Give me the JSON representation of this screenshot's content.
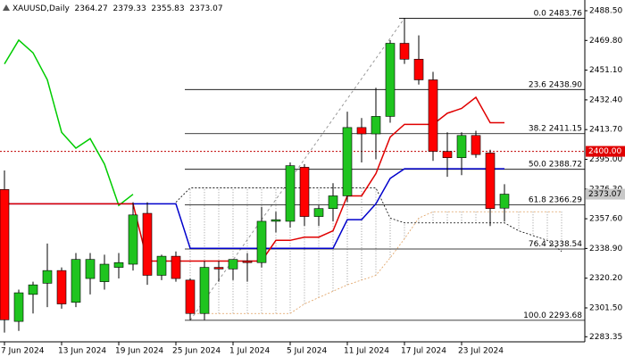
{
  "chart_data": {
    "type": "candlestick",
    "symbol": "XAUUSD,Daily",
    "categories": [
      "7 Jun 2024",
      null,
      null,
      null,
      "13 Jun 2024",
      null,
      null,
      null,
      "19 Jun 2024",
      null,
      null,
      null,
      "25 Jun 2024",
      null,
      null,
      null,
      "1 Jul 2024",
      null,
      null,
      null,
      "5 Jul 2024",
      null,
      null,
      null,
      "11 Jul 2024",
      null,
      null,
      null,
      "17 Jul 2024",
      null,
      null,
      null,
      "23 Jul 2024",
      null,
      null,
      null,
      null,
      null,
      null,
      null
    ],
    "open": [
      2376,
      2293,
      2310,
      2317,
      2325,
      2305,
      2320,
      2318,
      2327,
      2329,
      2361,
      2322,
      2334,
      2319,
      2298,
      2327,
      2326,
      2331,
      2330,
      2356,
      2356,
      2390,
      2359,
      2364,
      2372,
      2415,
      2411,
      2422,
      2468,
      2458,
      2445,
      2400,
      2396,
      2410,
      2399,
      2364.27,
      null,
      null,
      null,
      null
    ],
    "high": [
      2388,
      2313,
      2318,
      2342,
      2327,
      2336,
      2336,
      2335,
      2336,
      2368,
      2368,
      2335,
      2337,
      2320,
      2331,
      2331,
      2332,
      2336,
      2365,
      2362,
      2393,
      2392,
      2366,
      2380,
      2425,
      2421,
      2440,
      2470,
      2484,
      2473,
      2450,
      2412,
      2412,
      2413,
      2401,
      2379.33,
      null,
      null,
      null,
      null
    ],
    "low": [
      2286,
      2287,
      2298,
      2302,
      2301,
      2302,
      2310,
      2313,
      2320,
      2325,
      2316,
      2319,
      2318,
      2294,
      2294,
      2318,
      2319,
      2318,
      2327,
      2349,
      2352,
      2353,
      2353,
      2356,
      2368,
      2393,
      2395,
      2418,
      2455,
      2442,
      2394,
      2384,
      2385,
      2396,
      2353,
      2355.83,
      null,
      null,
      null,
      null
    ],
    "close": [
      2294,
      2311,
      2316,
      2325,
      2304,
      2332,
      2332,
      2329,
      2330,
      2360,
      2322,
      2334,
      2320,
      2298,
      2327,
      2326,
      2332,
      2330,
      2356,
      2357,
      2391,
      2359,
      2364,
      2372,
      2415,
      2411,
      2422,
      2468,
      2458,
      2445,
      2400,
      2396,
      2410,
      2398,
      2364,
      2373.07,
      null,
      null,
      null,
      null
    ],
    "up_color": "#1fc41f",
    "down_color": "#ff0000",
    "series": [
      {
        "color": "#e0a060",
        "style": "dashed",
        "values": [
          null,
          null,
          null,
          null,
          null,
          null,
          null,
          null,
          null,
          null,
          null,
          null,
          null,
          2298,
          2298,
          2298,
          2298,
          2298,
          2298,
          2298,
          2298,
          2304,
          2308,
          2312,
          2316,
          2319,
          2322,
          2333,
          2345,
          2358,
          2362,
          2362,
          2362,
          2362,
          2362,
          2362,
          2362,
          2362,
          2362,
          2362
        ]
      },
      {
        "color": "#000000",
        "style": "dashed",
        "values": [
          null,
          null,
          null,
          null,
          null,
          null,
          null,
          null,
          null,
          null,
          null,
          null,
          2368,
          2377,
          2377,
          2377,
          2377,
          2377,
          2377,
          2377,
          2377,
          2377,
          2377,
          2377,
          2377,
          2377,
          2377,
          2358,
          2355,
          2355,
          2355,
          2355,
          2355,
          2355,
          2355,
          2355,
          2350,
          2347,
          2344,
          2337
        ]
      },
      {
        "color": "#00cc00",
        "style": "solid",
        "values": [
          2455,
          2470,
          2462,
          2445,
          2412,
          2402,
          2408,
          2392,
          2366,
          2373,
          null,
          null,
          null,
          null,
          null,
          null,
          null,
          null,
          null,
          null,
          null,
          null,
          null,
          null,
          null,
          null,
          null,
          null,
          null,
          null,
          null,
          null,
          null,
          null,
          null,
          null,
          null,
          null,
          null,
          null
        ]
      },
      {
        "color": "#0000cc",
        "style": "solid",
        "values": [
          2367,
          2367,
          2367,
          2367,
          2367,
          2367,
          2367,
          2367,
          2367,
          2367,
          2367,
          2367,
          2367,
          2339,
          2339,
          2339,
          2339,
          2339,
          2339,
          2339,
          2339,
          2339,
          2339,
          2339,
          2357,
          2357,
          2367,
          2383,
          2389,
          2389,
          2389,
          2389,
          2389,
          2389,
          2389,
          2389,
          null,
          null,
          null,
          null
        ]
      },
      {
        "color": "#e00000",
        "style": "solid",
        "values": [
          2367,
          2367,
          2367,
          2367,
          2367,
          2367,
          2367,
          2367,
          2367,
          2367,
          2331,
          2331,
          2331,
          2331,
          2331,
          2331,
          2331,
          2331,
          2331,
          2344,
          2344,
          2346,
          2346,
          2350,
          2372,
          2372,
          2386,
          2409,
          2417,
          2417,
          2417,
          2424,
          2427,
          2434,
          2418,
          2418,
          null,
          null,
          null,
          null
        ]
      }
    ],
    "fib_levels": [
      {
        "ratio": "0.0",
        "price": 2483.76
      },
      {
        "ratio": "23.6",
        "price": {
          "value": 2438.9,
          "label": "2438.90"
        }
      },
      {
        "ratio": "38.2",
        "price": 2411.15
      },
      {
        "ratio": "50.0",
        "price": 2388.72
      },
      {
        "ratio": "61.8",
        "price": 2366.29
      },
      {
        "ratio": "76.4",
        "price": 2338.54
      },
      {
        "ratio": "100.0",
        "price": 2293.68
      }
    ],
    "alert_level": {
      "value": 2400,
      "label": "2400.00"
    },
    "ylim": [
      2280.15,
      2495.24
    ],
    "yticks": [
      {
        "value": 2488.5,
        "label": "2488.50"
      },
      {
        "value": 2469.8,
        "label": "2469.80"
      },
      {
        "value": 2451.1,
        "label": "2451.10"
      },
      {
        "value": 2432.4,
        "label": "2432.40"
      },
      {
        "value": 2413.7,
        "label": "2413.70"
      },
      {
        "value": 2395,
        "label": "2395.00"
      },
      {
        "value": 2376.3,
        "label": "2376.30"
      },
      {
        "value": 2357.6,
        "label": "2357.60"
      },
      {
        "value": 2338.9,
        "label": "2338.90"
      },
      {
        "value": 2320.2,
        "label": "2320.20"
      },
      {
        "value": 2301.5,
        "label": "2301.50"
      },
      2283.35
    ]
  }
}
